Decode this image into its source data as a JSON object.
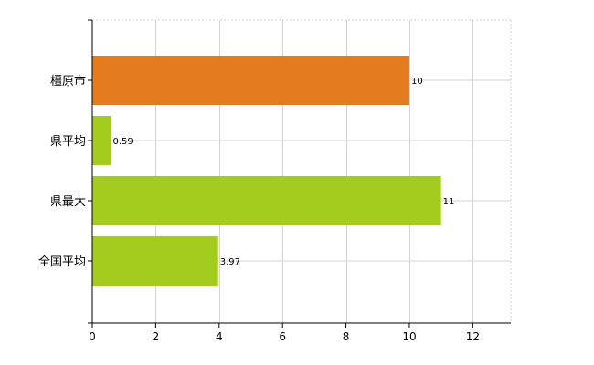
{
  "chart_data": {
    "type": "bar",
    "orientation": "horizontal",
    "categories": [
      "橿原市",
      "県平均",
      "県最大",
      "全国平均"
    ],
    "values": [
      10,
      0.59,
      11,
      3.97
    ],
    "value_labels": [
      "10",
      "0.59",
      "11",
      "3.97"
    ],
    "bar_colors": [
      "#e47c1f",
      "#a4cc1e",
      "#a4cc1e",
      "#a4cc1e"
    ],
    "xlim": [
      0,
      13.2
    ],
    "xticks": [
      0,
      2,
      4,
      6,
      8,
      10,
      12
    ],
    "xtick_labels": [
      "0",
      "2",
      "4",
      "6",
      "8",
      "10",
      "12"
    ],
    "grid": true,
    "grid_color": "#d3d3d3",
    "legend": "none"
  }
}
